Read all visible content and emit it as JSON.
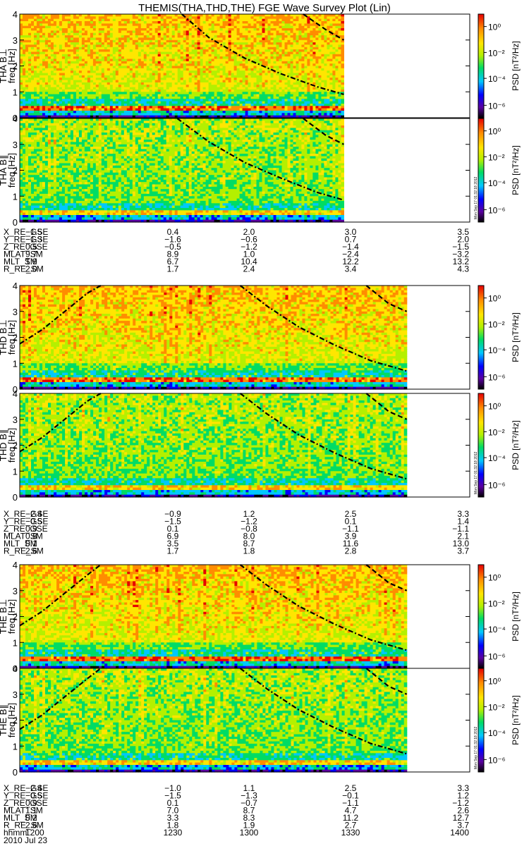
{
  "chart_data": {
    "type": "heatmap",
    "title": "THEMIS(THA,THD,THE) FGE Wave Survey Plot (Lin)",
    "colorbar": {
      "label": "PSD [nT²/Hz]",
      "scale": "log",
      "ticks": [
        "10⁰",
        "10⁻²",
        "10⁻⁴",
        "10⁻⁶"
      ],
      "colors": [
        "#000000",
        "#5a00a0",
        "#0000ff",
        "#00c8ff",
        "#00dc64",
        "#b4f000",
        "#ffe600",
        "#ff8c00",
        "#e60000"
      ]
    },
    "ylim": [
      0,
      4
    ],
    "yticks": [
      0,
      1,
      2,
      3,
      4
    ],
    "timestamp": "Mon Sep 17 01:32:18 2012",
    "panels": [
      {
        "id": "tha-bperp",
        "ylabel1": "THA B⊥",
        "ylabel2": "freq [Hz]",
        "data_end_frac": 0.72,
        "curves": [
          {
            "style": "dashdot",
            "points": [
              [
                0.36,
                4.05
              ],
              [
                0.42,
                3.1
              ],
              [
                0.5,
                2.3
              ],
              [
                0.58,
                1.7
              ],
              [
                0.66,
                1.2
              ],
              [
                0.72,
                0.9
              ]
            ]
          },
          {
            "style": "dashed",
            "points": [
              [
                0.63,
                4.05
              ],
              [
                0.68,
                3.4
              ],
              [
                0.72,
                3.0
              ]
            ]
          }
        ]
      },
      {
        "id": "tha-bpar",
        "ylabel1": "THA B∥",
        "ylabel2": "freq [Hz]",
        "data_end_frac": 0.72,
        "curves": [
          {
            "style": "dashdot",
            "points": [
              [
                0.35,
                4.05
              ],
              [
                0.42,
                3.1
              ],
              [
                0.5,
                2.3
              ],
              [
                0.58,
                1.7
              ],
              [
                0.66,
                1.15
              ],
              [
                0.72,
                0.85
              ]
            ]
          },
          {
            "style": "dashed",
            "points": [
              [
                0.63,
                4.05
              ],
              [
                0.68,
                3.35
              ],
              [
                0.72,
                3.0
              ]
            ]
          }
        ]
      },
      {
        "id": "thd-bperp",
        "ylabel1": "THD B⊥",
        "ylabel2": "freq [Hz]",
        "data_end_frac": 0.86,
        "curves": [
          {
            "style": "dashdot",
            "points": [
              [
                0.0,
                1.75
              ],
              [
                0.05,
                2.3
              ],
              [
                0.1,
                3.0
              ],
              [
                0.15,
                3.7
              ],
              [
                0.18,
                4.05
              ]
            ]
          },
          {
            "style": "dashdot",
            "points": [
              [
                0.49,
                4.05
              ],
              [
                0.55,
                3.2
              ],
              [
                0.62,
                2.4
              ],
              [
                0.7,
                1.7
              ],
              [
                0.78,
                1.1
              ],
              [
                0.86,
                0.7
              ]
            ]
          },
          {
            "style": "dashed",
            "points": [
              [
                0.77,
                4.05
              ],
              [
                0.82,
                3.3
              ],
              [
                0.86,
                3.0
              ]
            ]
          }
        ]
      },
      {
        "id": "thd-bpar",
        "ylabel1": "THD B∥",
        "ylabel2": "freq [Hz]",
        "data_end_frac": 0.86,
        "curves": [
          {
            "style": "dashdot",
            "points": [
              [
                0.0,
                1.75
              ],
              [
                0.05,
                2.3
              ],
              [
                0.1,
                3.0
              ],
              [
                0.15,
                3.7
              ],
              [
                0.18,
                4.05
              ]
            ]
          },
          {
            "style": "dashdot",
            "points": [
              [
                0.49,
                4.05
              ],
              [
                0.55,
                3.2
              ],
              [
                0.62,
                2.4
              ],
              [
                0.7,
                1.7
              ],
              [
                0.78,
                1.1
              ],
              [
                0.86,
                0.7
              ]
            ]
          },
          {
            "style": "dashed",
            "points": [
              [
                0.77,
                4.05
              ],
              [
                0.82,
                3.3
              ],
              [
                0.86,
                3.0
              ]
            ]
          }
        ]
      },
      {
        "id": "the-bperp",
        "ylabel1": "THE B⊥",
        "ylabel2": "freq [Hz]",
        "data_end_frac": 0.86,
        "curves": [
          {
            "style": "dashdot",
            "points": [
              [
                0.0,
                1.65
              ],
              [
                0.05,
                2.2
              ],
              [
                0.1,
                2.9
              ],
              [
                0.15,
                3.6
              ],
              [
                0.18,
                4.05
              ]
            ]
          },
          {
            "style": "dashdot",
            "points": [
              [
                0.49,
                4.05
              ],
              [
                0.55,
                3.2
              ],
              [
                0.62,
                2.4
              ],
              [
                0.7,
                1.7
              ],
              [
                0.78,
                1.1
              ],
              [
                0.86,
                0.7
              ]
            ]
          },
          {
            "style": "dashed",
            "points": [
              [
                0.77,
                4.05
              ],
              [
                0.82,
                3.3
              ],
              [
                0.86,
                3.0
              ]
            ]
          }
        ]
      },
      {
        "id": "the-bpar",
        "ylabel1": "THE B∥",
        "ylabel2": "freq [Hz]",
        "data_end_frac": 0.86,
        "curves": [
          {
            "style": "dashdot",
            "points": [
              [
                0.0,
                1.65
              ],
              [
                0.05,
                2.2
              ],
              [
                0.1,
                2.9
              ],
              [
                0.15,
                3.6
              ],
              [
                0.18,
                4.05
              ]
            ]
          },
          {
            "style": "dashdot",
            "points": [
              [
                0.49,
                4.05
              ],
              [
                0.55,
                3.2
              ],
              [
                0.62,
                2.4
              ],
              [
                0.7,
                1.7
              ],
              [
                0.78,
                1.1
              ],
              [
                0.86,
                0.7
              ]
            ]
          },
          {
            "style": "dashed",
            "points": [
              [
                0.77,
                4.05
              ],
              [
                0.82,
                3.3
              ],
              [
                0.86,
                3.0
              ]
            ]
          }
        ]
      }
    ],
    "ephemeris": [
      {
        "id": "tha",
        "rows": [
          {
            "label": "X_RE_GSE",
            "values": [
              "-1.5",
              "0.4",
              "2.0",
              "3.0",
              "3.5"
            ]
          },
          {
            "label": "Y_RE_GSE",
            "values": [
              "-1.3",
              "-1.6",
              "-0.6",
              "0.7",
              "2.0"
            ]
          },
          {
            "label": "Z_RE_GSE",
            "values": [
              "0.5",
              "-0.5",
              "-1.2",
              "-1.4",
              "-1.5"
            ]
          },
          {
            "label": "MLAT_SM",
            "values": [
              "9.7",
              "8.9",
              "1.0",
              "-2.4",
              "-3.2"
            ]
          },
          {
            "label": "MLT_SM",
            "values": [
              "1.9",
              "6.7",
              "10.4",
              "12.2",
              "13.2"
            ]
          },
          {
            "label": "R_RE_SM",
            "values": [
              "2.0",
              "1.7",
              "2.4",
              "3.4",
              "4.3"
            ]
          }
        ]
      },
      {
        "id": "thd",
        "rows": [
          {
            "label": "X_RE_GSE",
            "values": [
              "-2.4",
              "-0.9",
              "1.2",
              "2.5",
              "3.3"
            ]
          },
          {
            "label": "Y_RE_GSE",
            "values": [
              "-0.5",
              "-1.5",
              "-1.2",
              "0.1",
              "1.4"
            ]
          },
          {
            "label": "Z_RE_GSE",
            "values": [
              "0.9",
              "0.1",
              "-0.8",
              "-1.1",
              "-1.1"
            ]
          },
          {
            "label": "MLAT_SM",
            "values": [
              "0.8",
              "6.9",
              "8.0",
              "3.9",
              "2.1"
            ]
          },
          {
            "label": "MLT_SM",
            "values": [
              "0.1",
              "3.5",
              "8.7",
              "11.6",
              "13.0"
            ]
          },
          {
            "label": "R_RE_SM",
            "values": [
              "2.6",
              "1.7",
              "1.8",
              "2.8",
              "3.7"
            ]
          }
        ]
      },
      {
        "id": "the",
        "rows": [
          {
            "label": "X_RE_GSE",
            "values": [
              "-2.4",
              "-1.0",
              "1.1",
              "2.5",
              "3.3"
            ]
          },
          {
            "label": "Y_RE_GSE",
            "values": [
              "-0.5",
              "-1.5",
              "-1.3",
              "-0.1",
              "1.2"
            ]
          },
          {
            "label": "Z_RE_GSE",
            "values": [
              "0.9",
              "0.1",
              "-0.7",
              "-1.1",
              "-1.2"
            ]
          },
          {
            "label": "MLAT_SM",
            "values": [
              "1.1",
              "7.0",
              "8.7",
              "4.7",
              "2.6"
            ]
          },
          {
            "label": "MLT_SM",
            "values": [
              "0.2",
              "3.3",
              "8.3",
              "11.2",
              "12.7"
            ]
          },
          {
            "label": "R_RE_SM",
            "values": [
              "2.6",
              "1.8",
              "1.9",
              "2.7",
              "3.7"
            ]
          },
          {
            "label": "hhmm",
            "values": [
              "1200",
              "1230",
              "1300",
              "1330",
              "1400"
            ]
          }
        ]
      }
    ],
    "date_label": "2010 Jul 23"
  }
}
